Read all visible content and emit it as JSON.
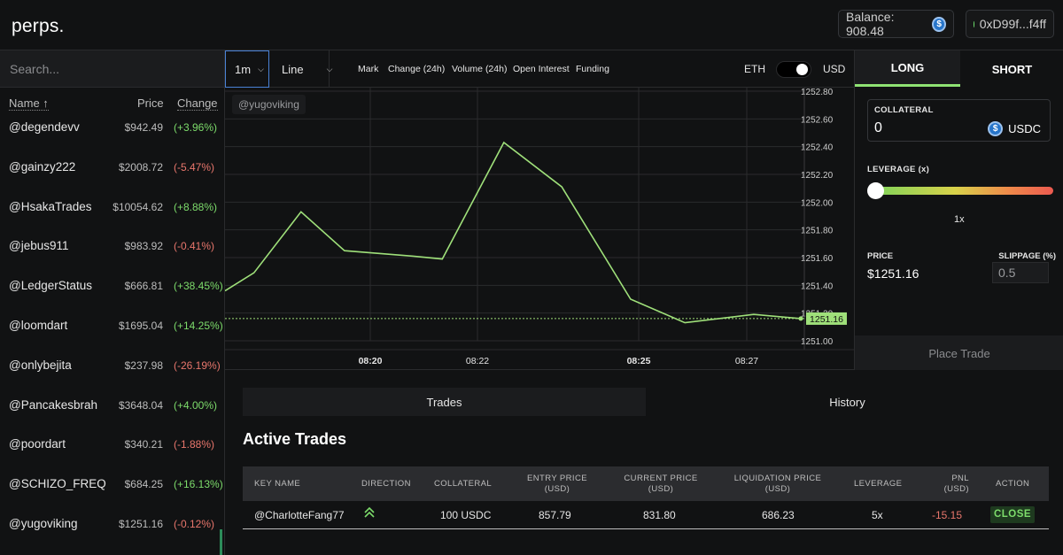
{
  "header": {
    "logo": "perps.",
    "balance": "Balance: 908.48",
    "address": "0xD99f...f4ff"
  },
  "sidebar": {
    "search_placeholder": "Search...",
    "col_name": "Name ↑",
    "col_price": "Price",
    "col_change": "Change",
    "rows": [
      {
        "name": "@degendevv",
        "price": "$942.49",
        "change": "(+3.96%)",
        "dir": "pos"
      },
      {
        "name": "@gainzy222",
        "price": "$2008.72",
        "change": "(-5.47%)",
        "dir": "neg"
      },
      {
        "name": "@HsakaTrades",
        "price": "$10054.62",
        "change": "(+8.88%)",
        "dir": "pos"
      },
      {
        "name": "@jebus911",
        "price": "$983.92",
        "change": "(-0.41%)",
        "dir": "neg"
      },
      {
        "name": "@LedgerStatus",
        "price": "$666.81",
        "change": "(+38.45%)",
        "dir": "pos"
      },
      {
        "name": "@loomdart",
        "price": "$1695.04",
        "change": "(+14.25%)",
        "dir": "pos"
      },
      {
        "name": "@onlybejita",
        "price": "$237.98",
        "change": "(-26.19%)",
        "dir": "neg"
      },
      {
        "name": "@Pancakesbrah",
        "price": "$3648.04",
        "change": "(+4.00%)",
        "dir": "pos"
      },
      {
        "name": "@poordart",
        "price": "$340.21",
        "change": "(-1.88%)",
        "dir": "neg"
      },
      {
        "name": "@SCHIZO_FREQ",
        "price": "$684.25",
        "change": "(+16.13%)",
        "dir": "pos"
      },
      {
        "name": "@yugoviking",
        "price": "$1251.16",
        "change": "(-0.12%)",
        "dir": "neg"
      }
    ]
  },
  "toolbar": {
    "interval": "1m",
    "chart_type": "Line",
    "metrics": [
      "Mark",
      "Change (24h)",
      "Volume (24h)",
      "Open Interest",
      "Funding"
    ],
    "toggle_left": "ETH",
    "toggle_right": "USD"
  },
  "chart": {
    "watermark": "@yugoviking",
    "current_price_label": "1251.16"
  },
  "chart_data": {
    "type": "line",
    "x": [
      "08:19",
      "08:19:30",
      "08:20:30",
      "08:20:30b",
      "08:21:30",
      "08:22",
      "08:23",
      "08:24",
      "08:25",
      "08:26",
      "08:27",
      "08:28"
    ],
    "x_ticks": [
      {
        "label": "08:20",
        "bold": true,
        "t": 2
      },
      {
        "label": "08:22",
        "bold": false,
        "t": 4
      },
      {
        "label": "08:25",
        "bold": true,
        "t": 7
      },
      {
        "label": "08:27",
        "bold": false,
        "t": 9
      }
    ],
    "points": [
      {
        "t": 0.0,
        "y": 1251.36
      },
      {
        "t": 0.4,
        "y": 1251.49
      },
      {
        "t": 1.05,
        "y": 1251.93
      },
      {
        "t": 1.65,
        "y": 1251.65
      },
      {
        "t": 2.6,
        "y": 1251.61
      },
      {
        "t": 3.0,
        "y": 1251.59
      },
      {
        "t": 3.85,
        "y": 1252.43
      },
      {
        "t": 4.65,
        "y": 1252.11
      },
      {
        "t": 5.6,
        "y": 1251.3
      },
      {
        "t": 6.35,
        "y": 1251.13
      },
      {
        "t": 7.3,
        "y": 1251.19
      },
      {
        "t": 7.95,
        "y": 1251.16
      }
    ],
    "y_ticks": [
      "1252.80",
      "1252.60",
      "1252.40",
      "1252.20",
      "1252.00",
      "1251.80",
      "1251.60",
      "1251.40",
      "1251.20",
      "1251.00"
    ],
    "ylim": [
      1251.0,
      1252.8
    ],
    "current": 1251.16,
    "line_color": "#9fe07a"
  },
  "trade_panel": {
    "long": "LONG",
    "short": "SHORT",
    "collateral_label": "COLLATERAL",
    "collateral_value": "0",
    "collateral_unit": "USDC",
    "leverage_label": "LEVERAGE (x)",
    "leverage_value": "1x",
    "leverage_fraction": 0.0,
    "price_label": "PRICE",
    "price_value": "$1251.16",
    "slippage_label": "SLIPPAGE (%)",
    "slippage_value": "0.5",
    "place_trade": "Place Trade"
  },
  "bottom": {
    "tab_trades": "Trades",
    "tab_history": "History",
    "title": "Active Trades",
    "columns": [
      "KEY NAME",
      "DIRECTION",
      "COLLATERAL",
      "ENTRY PRICE (USD)",
      "CURRENT PRICE (USD)",
      "LIQUIDATION PRICE (USD)",
      "LEVERAGE",
      "PNL (USD)",
      "ACTION"
    ],
    "rows": [
      {
        "key": "@CharlotteFang77",
        "collateral": "100 USDC",
        "entry": "857.79",
        "current": "831.80",
        "liq": "686.23",
        "leverage": "5x",
        "pnl": "-15.15",
        "action": "CLOSE"
      }
    ]
  },
  "colors": {
    "accent": "#8fe373",
    "positive": "#7ddc6b",
    "negative": "#e8766c",
    "background": "#111213"
  }
}
